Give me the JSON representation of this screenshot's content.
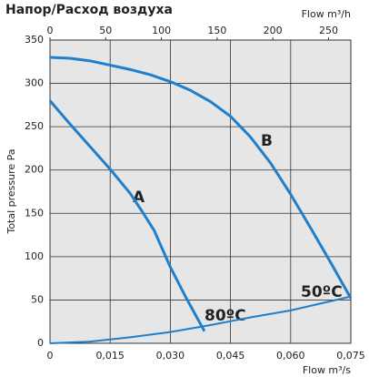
{
  "chart_data": {
    "type": "line",
    "title": "Напор/Расход воздуха",
    "y_label": "Total pressure Pa",
    "x_label": "Flow m³/s",
    "x2_label": "Flow m³/h",
    "xlim": [
      0,
      0.075
    ],
    "xticks": [
      0,
      {
        "value": 0.015,
        "label": "0,015"
      },
      {
        "value": 0.03,
        "label": "0,030"
      },
      {
        "value": 0.045,
        "label": "0,045"
      },
      {
        "value": 0.06,
        "label": "0,060"
      },
      {
        "value": 0.075,
        "label": "0,075"
      }
    ],
    "x2lim": [
      0,
      270
    ],
    "x2ticks": [
      0,
      50,
      100,
      150,
      200,
      250
    ],
    "ylim": [
      0,
      350
    ],
    "yticks": [
      0,
      50,
      100,
      150,
      200,
      250,
      300,
      350
    ],
    "grid": true,
    "series": [
      {
        "name": "A",
        "color": "#1f7fcc",
        "x": [
          0,
          0.005,
          0.01,
          0.015,
          0.02,
          0.023,
          0.026,
          0.03,
          0.034,
          0.0385
        ],
        "values": [
          280,
          253,
          227,
          201,
          173,
          152,
          130,
          88,
          52,
          14
        ]
      },
      {
        "name": "B",
        "color": "#1f7fcc",
        "x": [
          0,
          0.005,
          0.01,
          0.015,
          0.02,
          0.025,
          0.03,
          0.035,
          0.04,
          0.045,
          0.05,
          0.055,
          0.06,
          0.065,
          0.07,
          0.075
        ],
        "values": [
          330,
          329,
          326,
          321,
          316,
          310,
          302,
          292,
          279,
          262,
          238,
          208,
          172,
          133,
          93,
          52
        ]
      },
      {
        "color": "#1f7fcc",
        "x": [
          0,
          0.01,
          0.02,
          0.03,
          0.04,
          0.05,
          0.06,
          0.075
        ],
        "values": [
          0,
          2,
          7,
          13,
          21,
          30,
          38,
          54
        ]
      }
    ],
    "annotations": [
      "80ºC",
      "50ºC"
    ]
  }
}
